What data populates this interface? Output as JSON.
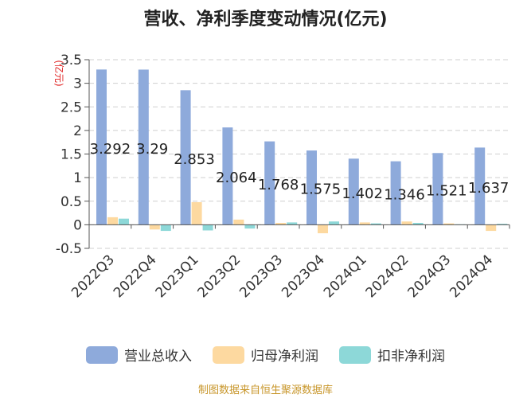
{
  "title": "营收、净利季度变动情况(亿元)",
  "source": "制图数据来自恒生聚源数据库",
  "chart_data": {
    "type": "bar",
    "title": "营收、净利季度变动情况(亿元)",
    "ylabel": "(亿元)",
    "ylim": [
      -0.5,
      3.5
    ],
    "yticks": [
      -0.5,
      0,
      0.5,
      1,
      1.5,
      2,
      2.5,
      3,
      3.5
    ],
    "ytick_labels": [
      "-0.5",
      "0",
      "0.5",
      "1",
      "1.5",
      "2",
      "2.5",
      "3",
      "3.5"
    ],
    "grid": true,
    "legend_position": "bottom",
    "categories": [
      "2022Q3",
      "2022Q4",
      "2023Q1",
      "2023Q2",
      "2023Q3",
      "2023Q4",
      "2024Q1",
      "2024Q2",
      "2024Q3",
      "2024Q4"
    ],
    "series": [
      {
        "name": "营业总收入",
        "color": "#8eaadb",
        "values": [
          3.292,
          3.29,
          2.853,
          2.064,
          1.768,
          1.575,
          1.402,
          1.346,
          1.521,
          1.637
        ],
        "labels": [
          "3.292",
          "3.29",
          "2.853",
          "2.064",
          "1.768",
          "1.575",
          "1.402",
          "1.346",
          "1.521",
          "1.637"
        ]
      },
      {
        "name": "归母净利润",
        "color": "#fdd9a0",
        "values": [
          0.16,
          -0.1,
          0.48,
          0.11,
          0.04,
          -0.18,
          0.05,
          0.07,
          0.03,
          -0.13
        ]
      },
      {
        "name": "扣非净利润",
        "color": "#8dd8d8",
        "values": [
          0.13,
          -0.13,
          -0.12,
          -0.08,
          0.05,
          0.07,
          0.03,
          0.04,
          0.01,
          0.02
        ]
      }
    ]
  }
}
